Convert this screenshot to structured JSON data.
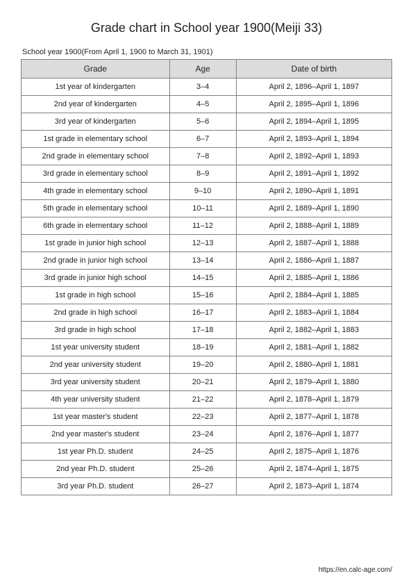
{
  "title": "Grade chart in School year 1900(Meiji 33)",
  "subtitle": "School year 1900(From April 1, 1900 to March 31, 1901)",
  "footer_url": "https://en.calc-age.com/",
  "table": {
    "type": "table",
    "background_color": "#ffffff",
    "header_bg": "#dcdcdc",
    "border_color": "#808080",
    "header_fontsize": 12,
    "cell_fontsize": 11,
    "columns": [
      "Grade",
      "Age",
      "Date of birth"
    ],
    "column_widths": [
      "40%",
      "18%",
      "42%"
    ],
    "rows": [
      [
        "1st year of kindergarten",
        "3–4",
        "April 2, 1896–April 1, 1897"
      ],
      [
        "2nd year of kindergarten",
        "4–5",
        "April 2, 1895–April 1, 1896"
      ],
      [
        "3rd year of kindergarten",
        "5–6",
        "April 2, 1894–April 1, 1895"
      ],
      [
        "1st grade in elementary school",
        "6–7",
        "April 2, 1893–April 1, 1894"
      ],
      [
        "2nd grade in elementary school",
        "7–8",
        "April 2, 1892–April 1, 1893"
      ],
      [
        "3rd grade in elementary school",
        "8–9",
        "April 2, 1891–April 1, 1892"
      ],
      [
        "4th grade in elementary school",
        "9–10",
        "April 2, 1890–April 1, 1891"
      ],
      [
        "5th grade in elementary school",
        "10–11",
        "April 2, 1889–April 1, 1890"
      ],
      [
        "6th grade in elementary school",
        "11–12",
        "April 2, 1888–April 1, 1889"
      ],
      [
        "1st grade in junior high school",
        "12–13",
        "April 2, 1887–April 1, 1888"
      ],
      [
        "2nd grade in junior high school",
        "13–14",
        "April 2, 1886–April 1, 1887"
      ],
      [
        "3rd grade in junior high school",
        "14–15",
        "April 2, 1885–April 1, 1886"
      ],
      [
        "1st grade in high school",
        "15–16",
        "April 2, 1884–April 1, 1885"
      ],
      [
        "2nd grade in high school",
        "16–17",
        "April 2, 1883–April 1, 1884"
      ],
      [
        "3rd grade in high school",
        "17–18",
        "April 2, 1882–April 1, 1883"
      ],
      [
        "1st year university student",
        "18–19",
        "April 2, 1881–April 1, 1882"
      ],
      [
        "2nd year university student",
        "19–20",
        "April 2, 1880–April 1, 1881"
      ],
      [
        "3rd year university student",
        "20–21",
        "April 2, 1879–April 1, 1880"
      ],
      [
        "4th year university student",
        "21–22",
        "April 2, 1878–April 1, 1879"
      ],
      [
        "1st year master's student",
        "22–23",
        "April 2, 1877–April 1, 1878"
      ],
      [
        "2nd year master's student",
        "23–24",
        "April 2, 1876–April 1, 1877"
      ],
      [
        "1st year Ph.D. student",
        "24–25",
        "April 2, 1875–April 1, 1876"
      ],
      [
        "2nd year Ph.D. student",
        "25–26",
        "April 2, 1874–April 1, 1875"
      ],
      [
        "3rd year Ph.D. student",
        "26–27",
        "April 2, 1873–April 1, 1874"
      ]
    ]
  }
}
